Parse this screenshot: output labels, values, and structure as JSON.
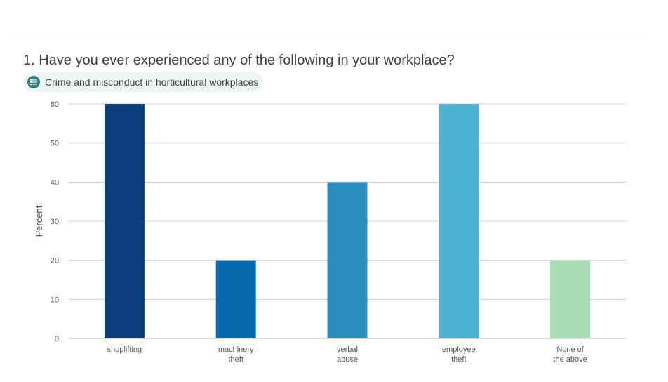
{
  "question": {
    "title": "1. Have you ever experienced any of the following in your workplace?",
    "tag": {
      "label": "Crime and misconduct in horticultural workplaces",
      "icon": "list-icon"
    }
  },
  "chart_data": {
    "type": "bar",
    "categories": [
      [
        "shoplifting"
      ],
      [
        "machinery",
        "theft"
      ],
      [
        "verbal",
        "abuse"
      ],
      [
        "employee",
        "theft"
      ],
      [
        "None of",
        "the above"
      ]
    ],
    "values": [
      60,
      20,
      40,
      60,
      20
    ],
    "colors": [
      "#0b3d7e",
      "#0868ac",
      "#2b8cbe",
      "#4eb3d3",
      "#a8ddb5"
    ],
    "ylabel": "Percent",
    "ylim": [
      0,
      60
    ],
    "yticks": [
      0,
      10,
      20,
      30,
      40,
      50,
      60
    ],
    "grid": true
  }
}
